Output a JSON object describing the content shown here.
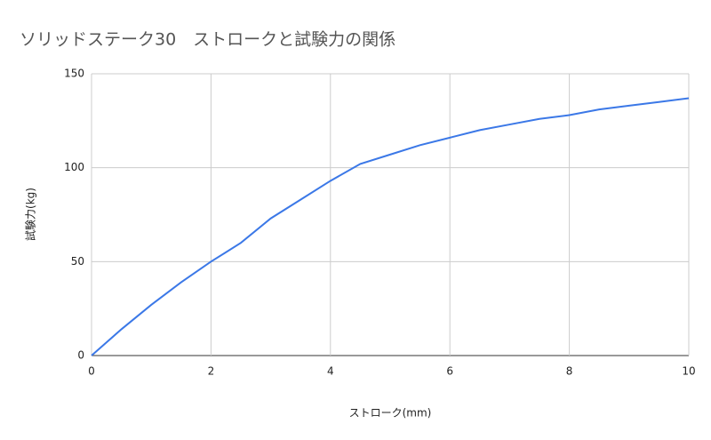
{
  "chart_data": {
    "type": "line",
    "title": "ソリッドステーク30　ストロークと試験力の関係",
    "x_label": "ストローク(mm)",
    "y_label": "試験力(kg)",
    "x": [
      0,
      0.5,
      1,
      1.5,
      2,
      2.5,
      3,
      3.5,
      4,
      4.5,
      5,
      5.5,
      6,
      6.5,
      7,
      7.5,
      8,
      8.5,
      9,
      9.5,
      10
    ],
    "series": [
      {
        "color": "#3b78e7",
        "values": [
          0,
          14,
          27,
          39,
          50,
          60,
          73,
          83,
          93,
          102,
          107,
          112,
          116,
          120,
          123,
          126,
          128,
          131,
          133,
          135,
          137
        ]
      }
    ],
    "xlim": [
      0,
      10
    ],
    "xticks": [
      0,
      2,
      4,
      6,
      8,
      10
    ],
    "ylim": [
      0,
      150
    ],
    "yticks": [
      0,
      50,
      100,
      150
    ],
    "grid": true
  }
}
